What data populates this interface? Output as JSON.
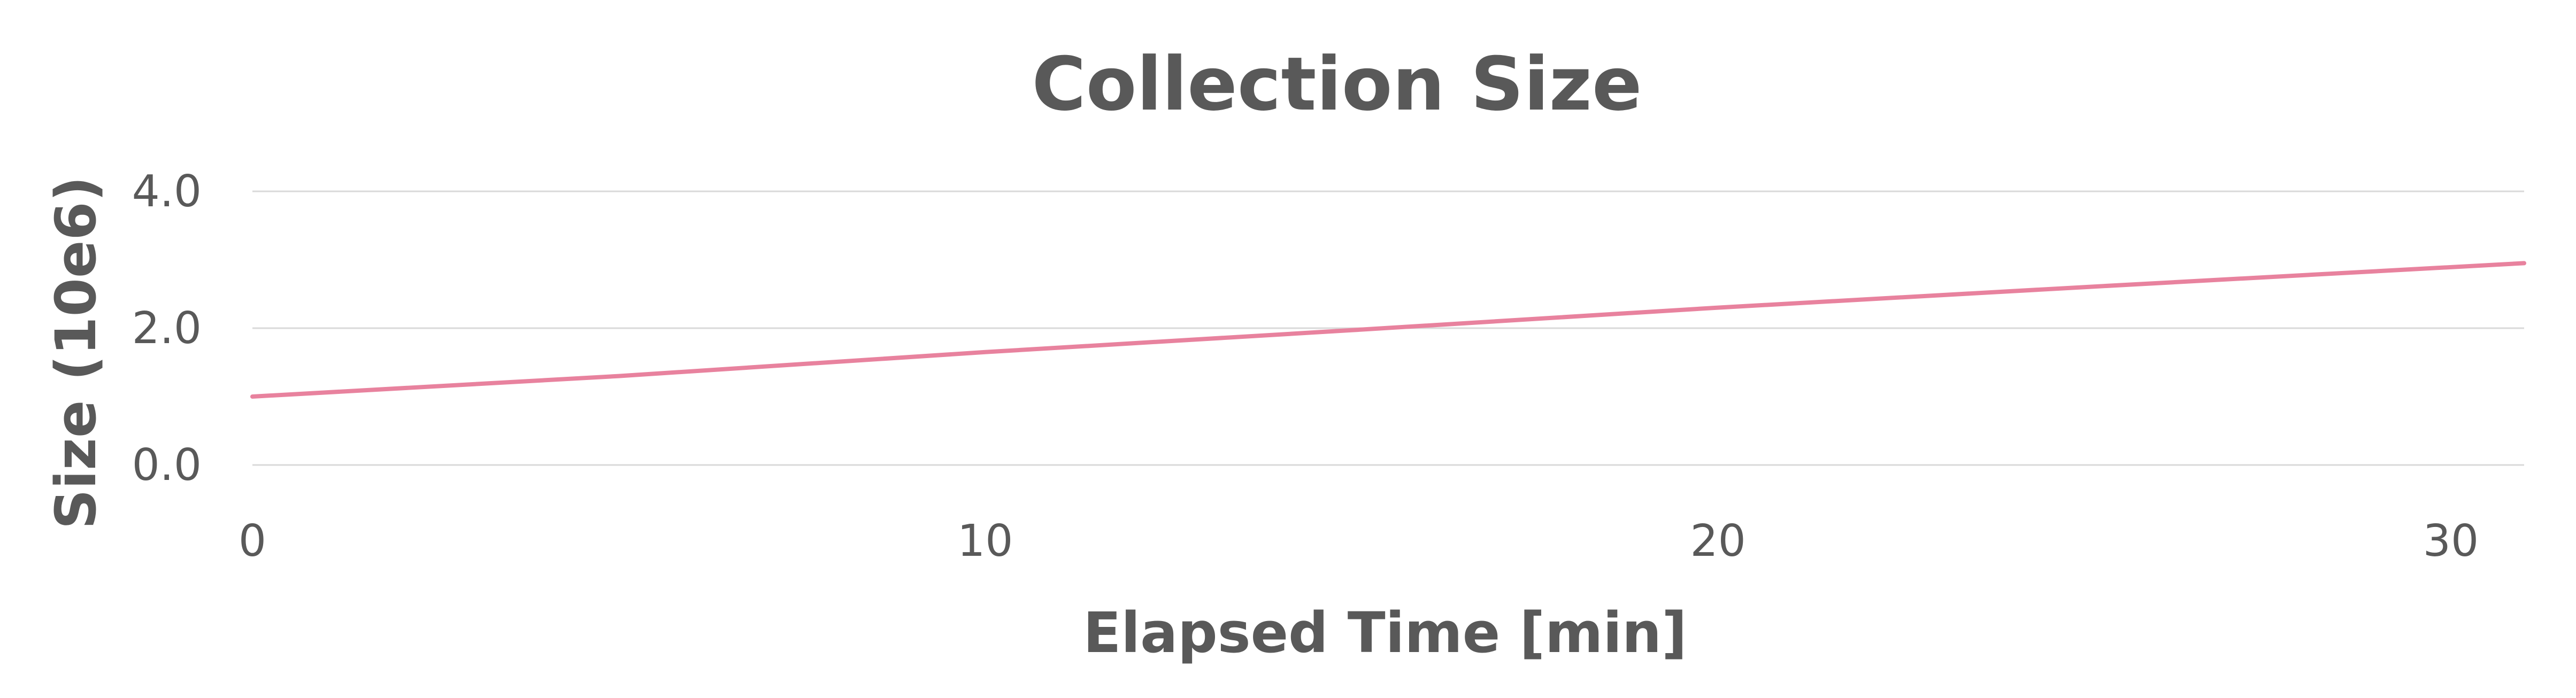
{
  "chart_data": {
    "type": "line",
    "title": "Collection Size",
    "xlabel": "Elapsed Time [min]",
    "ylabel": "Size (10e6)",
    "xlim": [
      0,
      31
    ],
    "ylim": [
      0,
      4
    ],
    "x_ticks": [
      0,
      10,
      20,
      30
    ],
    "x_tick_labels": [
      "0",
      "10",
      "20",
      "30"
    ],
    "y_ticks": [
      0,
      2,
      4
    ],
    "y_tick_labels": [
      "0.0",
      "2.0",
      "4.0"
    ],
    "grid": "horizontal",
    "legend": "none",
    "series": [
      {
        "color": "#e8829e",
        "x": [
          0,
          5,
          10,
          15,
          20,
          25,
          31
        ],
        "y": [
          1.0,
          1.3,
          1.65,
          1.97,
          2.3,
          2.6,
          2.95
        ]
      }
    ]
  }
}
